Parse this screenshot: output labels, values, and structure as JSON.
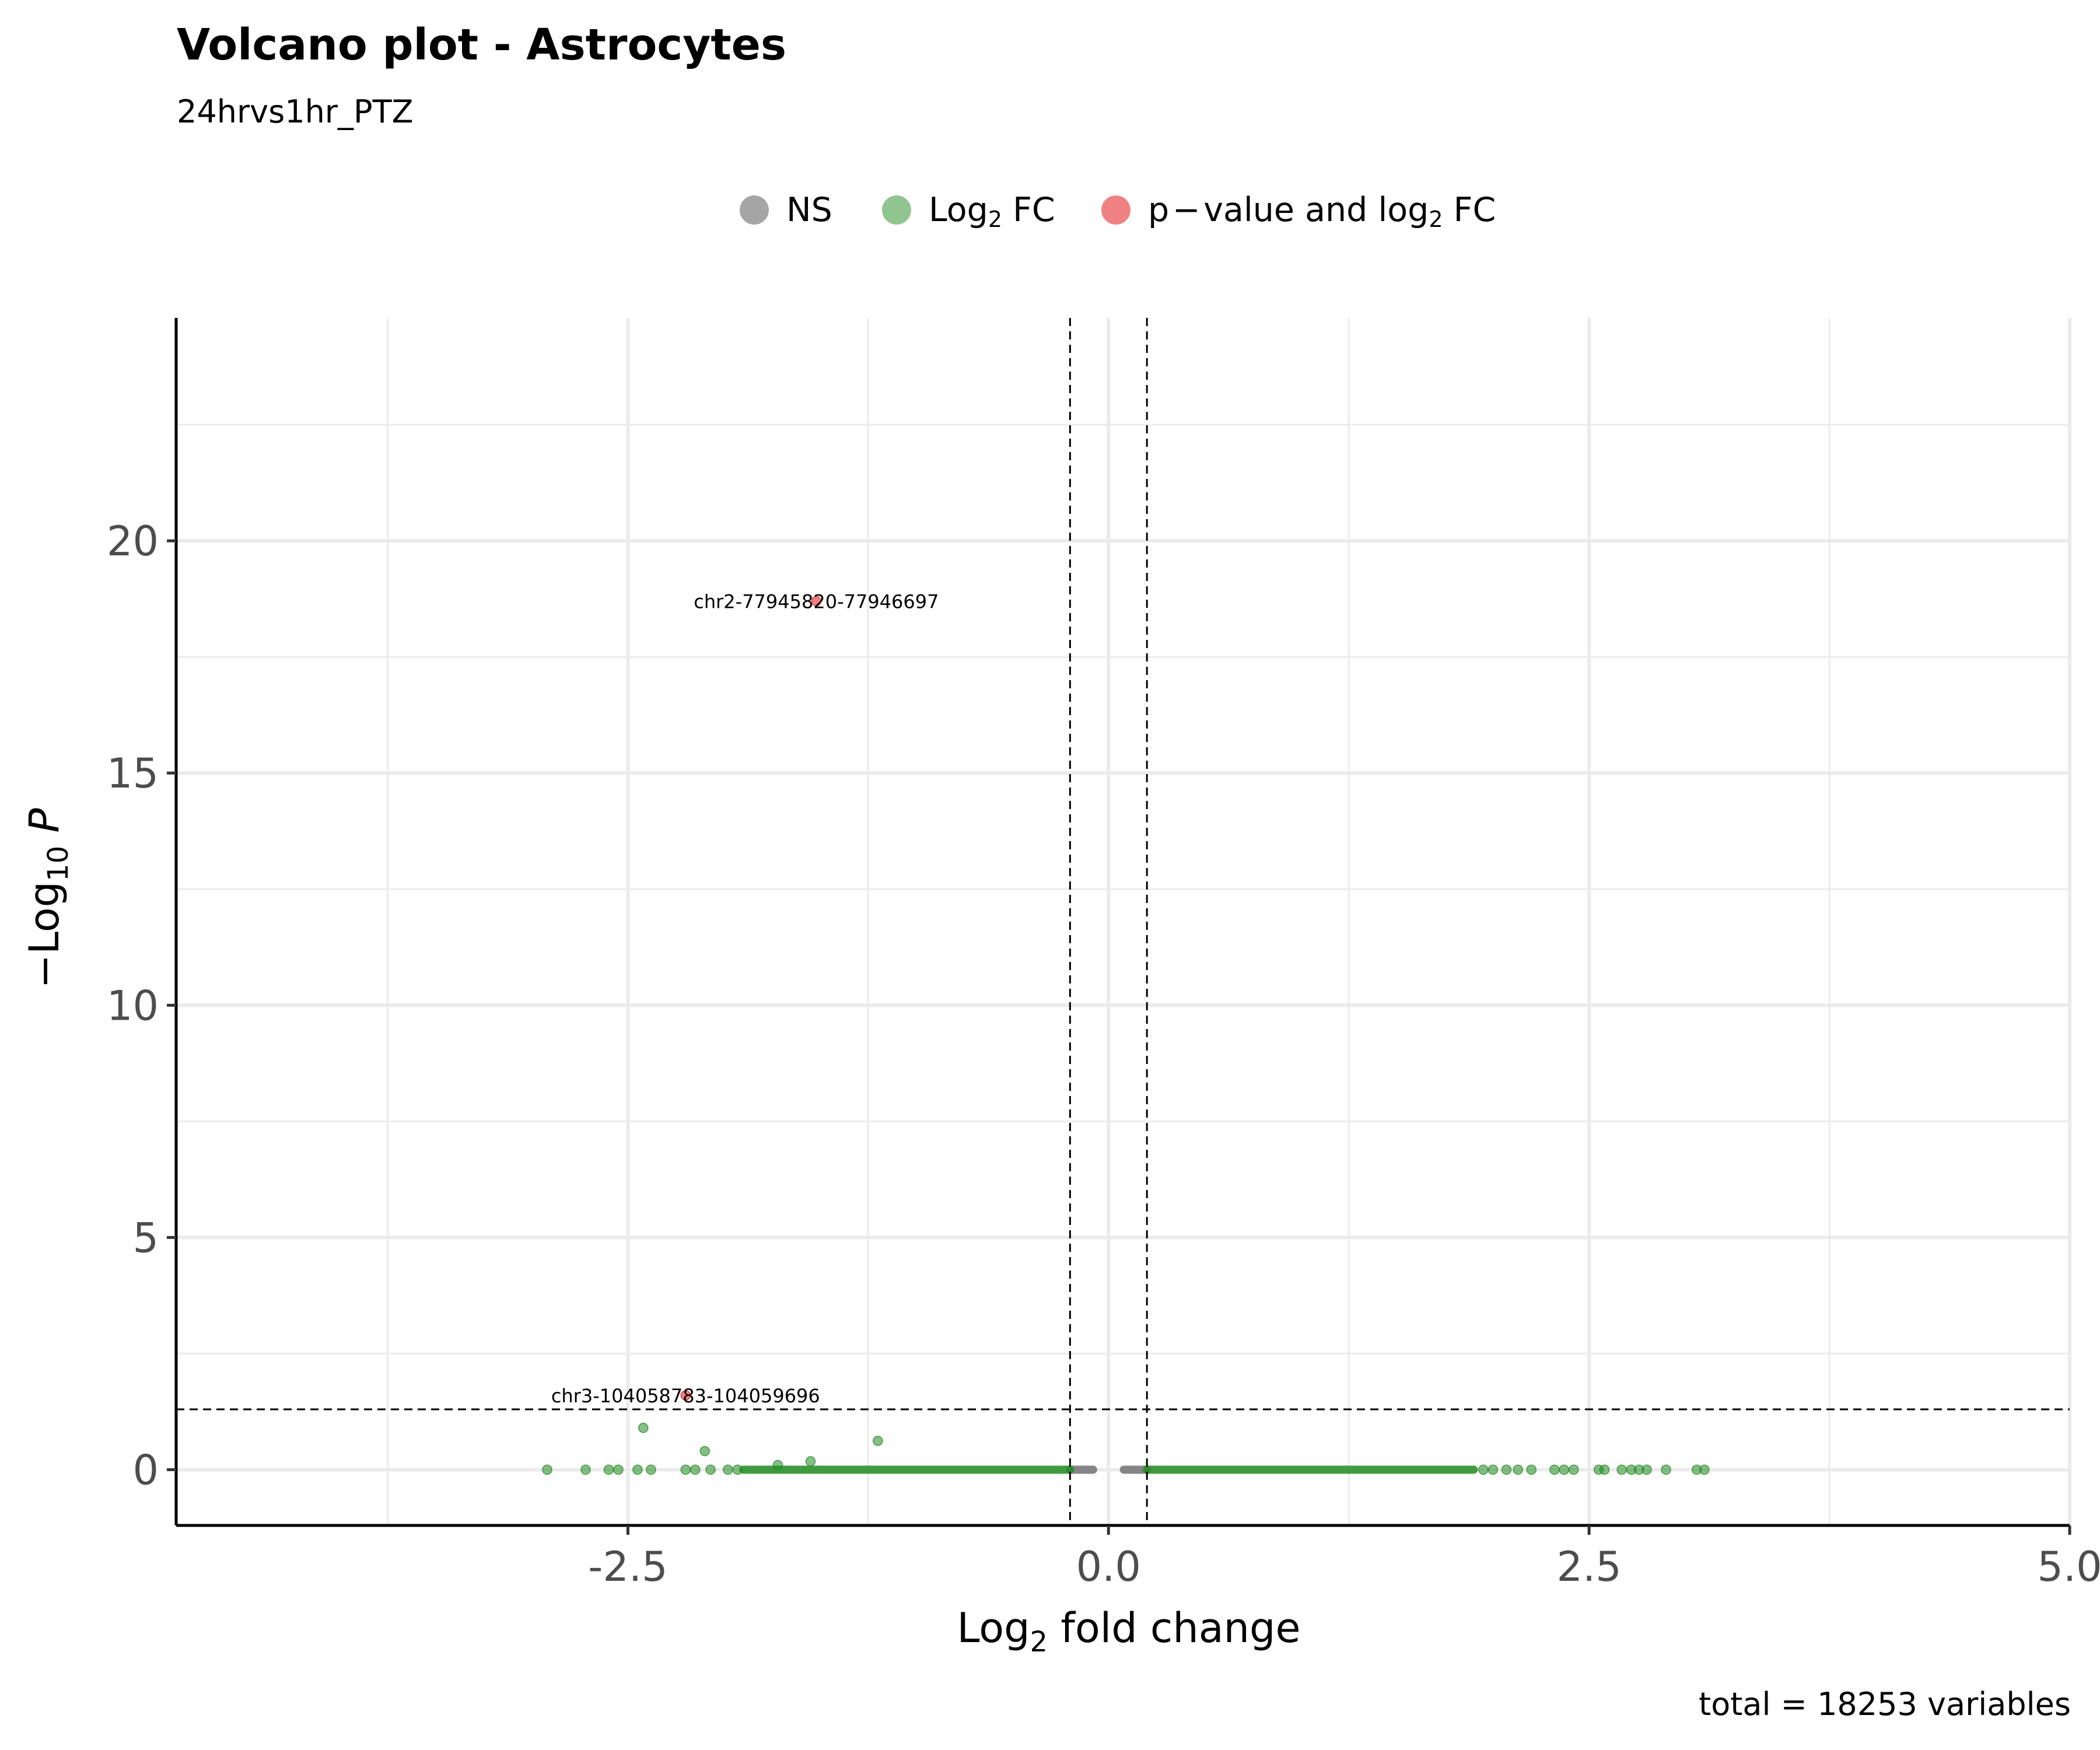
{
  "title": "Volcano plot - Astrocytes",
  "subtitle": "24hrvs1hr_PTZ",
  "caption": "total = 18253 variables",
  "legend": [
    {
      "label": "NS",
      "color": "#7f7f7f"
    },
    {
      "label": "Log2 FC",
      "color": "#228B22"
    },
    {
      "label": "p−value and log2 FC",
      "color": "#E41A1C"
    }
  ],
  "chart_data": {
    "type": "scatter",
    "title": "Volcano plot - Astrocytes",
    "subtitle": "24hrvs1hr_PTZ",
    "xlabel": "Log2 fold change",
    "ylabel": "−Log10 P",
    "xlim": [
      -4.85,
      5.0
    ],
    "ylim": [
      -1.2,
      24.8
    ],
    "x_ticks": [
      "-2.5",
      "0.0",
      "2.5",
      "5.0"
    ],
    "x_tick_values": [
      -2.5,
      0.0,
      2.5,
      5.0
    ],
    "y_ticks": [
      "0",
      "5",
      "10",
      "15",
      "20"
    ],
    "y_tick_values": [
      0,
      5,
      10,
      15,
      20
    ],
    "grid": true,
    "legend_position": "top",
    "thresholds": {
      "fc_cutoff": [
        -0.2,
        0.2
      ],
      "p_cutoff_neglog10": 1.3
    },
    "series": [
      {
        "name": "NS",
        "color": "#7f7f7f",
        "range_note": "dense band",
        "bands": [
          {
            "x_from": -0.2,
            "x_to": -0.08,
            "y": 0
          },
          {
            "x_from": 0.08,
            "x_to": 0.2,
            "y": 0
          }
        ]
      },
      {
        "name": "Log2 FC",
        "color": "#228B22",
        "bands": [
          {
            "x_from": -1.9,
            "x_to": -0.2,
            "y": 0
          },
          {
            "x_from": 0.2,
            "x_to": 1.9,
            "y": 0
          }
        ],
        "points": [
          {
            "x": -2.92,
            "y": 0
          },
          {
            "x": -2.72,
            "y": 0
          },
          {
            "x": -2.6,
            "y": 0
          },
          {
            "x": -2.55,
            "y": 0
          },
          {
            "x": -2.45,
            "y": 0
          },
          {
            "x": -2.38,
            "y": 0
          },
          {
            "x": -2.42,
            "y": 0.9
          },
          {
            "x": -2.2,
            "y": 0
          },
          {
            "x": -2.15,
            "y": 0
          },
          {
            "x": -2.1,
            "y": 0.4
          },
          {
            "x": -2.07,
            "y": 0
          },
          {
            "x": -1.98,
            "y": 0
          },
          {
            "x": -1.93,
            "y": 0
          },
          {
            "x": -1.72,
            "y": 0.1
          },
          {
            "x": -1.55,
            "y": 0.18
          },
          {
            "x": -1.2,
            "y": 0.62
          },
          {
            "x": 1.95,
            "y": 0
          },
          {
            "x": 2.0,
            "y": 0
          },
          {
            "x": 2.07,
            "y": 0
          },
          {
            "x": 2.13,
            "y": 0
          },
          {
            "x": 2.2,
            "y": 0
          },
          {
            "x": 2.32,
            "y": 0
          },
          {
            "x": 2.37,
            "y": 0
          },
          {
            "x": 2.42,
            "y": 0
          },
          {
            "x": 2.55,
            "y": 0
          },
          {
            "x": 2.58,
            "y": 0
          },
          {
            "x": 2.67,
            "y": 0
          },
          {
            "x": 2.72,
            "y": 0
          },
          {
            "x": 2.76,
            "y": 0
          },
          {
            "x": 2.8,
            "y": 0
          },
          {
            "x": 2.9,
            "y": 0
          },
          {
            "x": 3.06,
            "y": 0
          },
          {
            "x": 3.1,
            "y": 0
          }
        ]
      },
      {
        "name": "p−value and log2 FC",
        "color": "#E41A1C",
        "points": [
          {
            "x": -1.52,
            "y": 18.7,
            "label": "chr2-77945820-77946697"
          },
          {
            "x": -2.2,
            "y": 1.6,
            "label": "chr3-104058783-104059696"
          }
        ]
      }
    ]
  }
}
